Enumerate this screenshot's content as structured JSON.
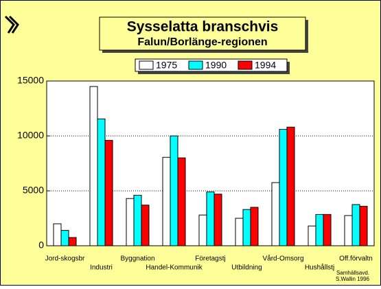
{
  "chart_data": {
    "type": "bar",
    "title": "Sysselatta branschvis",
    "subtitle": "Falun/Borlänge-regionen",
    "categories": [
      "Jord-skogsbr",
      "Industri",
      "Byggnation",
      "Handel-Kommunik",
      "Företagstj",
      "Utbildning",
      "Vård-Omsorg",
      "Hushållstj",
      "Off.förvaltn"
    ],
    "series": [
      {
        "name": "1975",
        "color": "#ffffff",
        "values": [
          2000,
          14500,
          4300,
          8050,
          2800,
          2500,
          5750,
          1800,
          2750
        ]
      },
      {
        "name": "1990",
        "color": "#00ffff",
        "values": [
          1400,
          11550,
          4600,
          10000,
          4900,
          3300,
          10600,
          2850,
          3750
        ]
      },
      {
        "name": "1994",
        "color": "#ff0000",
        "values": [
          750,
          9600,
          3700,
          8000,
          4700,
          3500,
          10800,
          2850,
          3600
        ]
      }
    ],
    "ylim": [
      0,
      15000
    ],
    "yticks": [
      0,
      5000,
      10000,
      15000
    ],
    "grid": true,
    "footnote": [
      "Samhällsavd.",
      "S.Wallin 1996"
    ]
  }
}
